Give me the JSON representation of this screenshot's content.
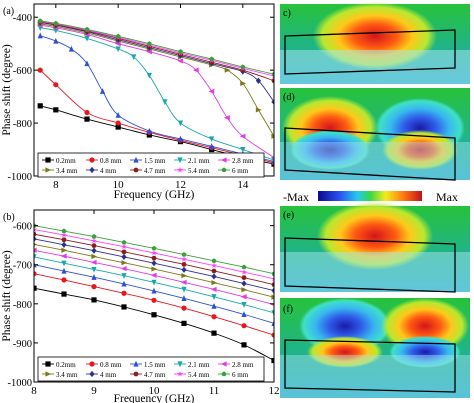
{
  "figure": {
    "colorbar": {
      "min_label": "-Max",
      "max_label": "Max"
    }
  },
  "panel_labels": [
    "(a)",
    "(b)",
    "c)",
    "(d)",
    "(e)",
    "(f)"
  ],
  "chart_data": [
    {
      "type": "line",
      "panel": "(a)",
      "xlabel": "Frequency (GHz)",
      "ylabel": "Phase shift (degree)",
      "xlim": [
        7.3,
        15
      ],
      "ylim": [
        -1000,
        -350
      ],
      "xticks": [
        8,
        10,
        12,
        14
      ],
      "yticks": [
        -400,
        -600,
        -800,
        -1000
      ],
      "legend_position": "bottom",
      "series": [
        {
          "name": "0.2mm",
          "color": "#000000",
          "marker": "square",
          "x": [
            7.5,
            8,
            9,
            10,
            11,
            12,
            13,
            14,
            15
          ],
          "y": [
            -735,
            -750,
            -785,
            -815,
            -845,
            -870,
            -900,
            -930,
            -955
          ]
        },
        {
          "name": "0.8 mm",
          "color": "#e8161e",
          "marker": "circle",
          "x": [
            7.5,
            8,
            9,
            10,
            11,
            12,
            13,
            14,
            15
          ],
          "y": [
            -600,
            -655,
            -760,
            -800,
            -835,
            -865,
            -893,
            -922,
            -950
          ]
        },
        {
          "name": "1.5 mm",
          "color": "#2f4fd6",
          "marker": "triangle-up",
          "x": [
            7.5,
            8,
            8.5,
            9,
            9.5,
            10,
            11,
            12,
            13,
            14,
            15
          ],
          "y": [
            -470,
            -490,
            -520,
            -575,
            -680,
            -770,
            -830,
            -860,
            -888,
            -917,
            -945
          ]
        },
        {
          "name": "2.1 mm",
          "color": "#1aa7a7",
          "marker": "triangle-down",
          "x": [
            7.5,
            8,
            9,
            10,
            10.5,
            11,
            11.5,
            12,
            13,
            14,
            15
          ],
          "y": [
            -440,
            -450,
            -480,
            -520,
            -550,
            -620,
            -720,
            -800,
            -860,
            -900,
            -940
          ]
        },
        {
          "name": "2.8 mm",
          "color": "#e03ce0",
          "marker": "triangle-left",
          "x": [
            7.5,
            8,
            9,
            10,
            11,
            12,
            12.5,
            13,
            13.5,
            14,
            15
          ],
          "y": [
            -430,
            -440,
            -465,
            -500,
            -530,
            -565,
            -600,
            -680,
            -780,
            -850,
            -930
          ]
        },
        {
          "name": "3.4 mm",
          "color": "#7a7a1a",
          "marker": "triangle-right",
          "x": [
            7.5,
            8,
            9,
            10,
            11,
            12,
            13,
            13.5,
            14,
            14.5,
            15
          ],
          "y": [
            -425,
            -435,
            -460,
            -490,
            -520,
            -550,
            -580,
            -600,
            -650,
            -750,
            -850
          ]
        },
        {
          "name": "4 mm",
          "color": "#2e2e8e",
          "marker": "diamond",
          "x": [
            7.5,
            8,
            9,
            10,
            11,
            12,
            13,
            14,
            14.5,
            15
          ],
          "y": [
            -420,
            -430,
            -455,
            -485,
            -515,
            -545,
            -575,
            -605,
            -640,
            -720
          ]
        },
        {
          "name": "4.7 mm",
          "color": "#8b1a1a",
          "marker": "hexagon",
          "x": [
            7.5,
            8,
            9,
            10,
            11,
            12,
            13,
            14,
            15
          ],
          "y": [
            -418,
            -428,
            -452,
            -480,
            -510,
            -540,
            -570,
            -600,
            -640
          ]
        },
        {
          "name": "5.4 mm",
          "color": "#ff40ff",
          "marker": "star",
          "x": [
            7.5,
            8,
            9,
            10,
            11,
            12,
            13,
            14,
            15
          ],
          "y": [
            -416,
            -425,
            -449,
            -476,
            -505,
            -535,
            -563,
            -593,
            -622
          ]
        },
        {
          "name": "6 mm",
          "color": "#3aa03a",
          "marker": "pentagon",
          "x": [
            7.5,
            8,
            9,
            10,
            11,
            12,
            13,
            14,
            15
          ],
          "y": [
            -414,
            -423,
            -446,
            -472,
            -500,
            -530,
            -558,
            -588,
            -615
          ]
        }
      ]
    },
    {
      "type": "line",
      "panel": "(b)",
      "xlabel": "Frequency (GHz)",
      "ylabel": "Phase shift (degree)",
      "xlim": [
        8,
        12
      ],
      "ylim": [
        -1000,
        -560
      ],
      "xticks": [
        8,
        9,
        10,
        11,
        12
      ],
      "yticks": [
        -600,
        -700,
        -800,
        -900,
        -1000
      ],
      "legend_position": "bottom",
      "series": [
        {
          "name": "0.2mm",
          "color": "#000000",
          "marker": "square",
          "x": [
            8,
            8.5,
            9,
            9.5,
            10,
            10.5,
            11,
            11.5,
            12
          ],
          "y": [
            -760,
            -775,
            -790,
            -808,
            -828,
            -850,
            -875,
            -905,
            -945
          ]
        },
        {
          "name": "0.8 mm",
          "color": "#e8161e",
          "marker": "circle",
          "x": [
            8,
            8.5,
            9,
            9.5,
            10,
            10.5,
            11,
            11.5,
            12
          ],
          "y": [
            -723,
            -739,
            -756,
            -773,
            -791,
            -811,
            -833,
            -856,
            -880
          ]
        },
        {
          "name": "1.5 mm",
          "color": "#2f4fd6",
          "marker": "triangle-up",
          "x": [
            8,
            8.5,
            9,
            9.5,
            10,
            10.5,
            11,
            11.5,
            12
          ],
          "y": [
            -700,
            -716,
            -732,
            -749,
            -767,
            -786,
            -806,
            -827,
            -850
          ]
        },
        {
          "name": "2.1 mm",
          "color": "#1aa7a7",
          "marker": "triangle-down",
          "x": [
            8,
            8.5,
            9,
            9.5,
            10,
            10.5,
            11,
            11.5,
            12
          ],
          "y": [
            -680,
            -696,
            -712,
            -728,
            -745,
            -763,
            -782,
            -802,
            -823
          ]
        },
        {
          "name": "2.8 mm",
          "color": "#e03ce0",
          "marker": "triangle-left",
          "x": [
            8,
            8.5,
            9,
            9.5,
            10,
            10.5,
            11,
            11.5,
            12
          ],
          "y": [
            -663,
            -678,
            -694,
            -710,
            -727,
            -745,
            -763,
            -782,
            -802
          ]
        },
        {
          "name": "3.4 mm",
          "color": "#7a7a1a",
          "marker": "triangle-right",
          "x": [
            8,
            8.5,
            9,
            9.5,
            10,
            10.5,
            11,
            11.5,
            12
          ],
          "y": [
            -648,
            -663,
            -679,
            -695,
            -711,
            -728,
            -746,
            -764,
            -783
          ]
        },
        {
          "name": "4 mm",
          "color": "#2e2e8e",
          "marker": "diamond",
          "x": [
            8,
            8.5,
            9,
            9.5,
            10,
            10.5,
            11,
            11.5,
            12
          ],
          "y": [
            -634,
            -649,
            -664,
            -680,
            -696,
            -713,
            -730,
            -748,
            -766
          ]
        },
        {
          "name": "4.7 mm",
          "color": "#8b1a1a",
          "marker": "hexagon",
          "x": [
            8,
            8.5,
            9,
            9.5,
            10,
            10.5,
            11,
            11.5,
            12
          ],
          "y": [
            -622,
            -636,
            -651,
            -667,
            -683,
            -699,
            -716,
            -733,
            -751
          ]
        },
        {
          "name": "5.4 mm",
          "color": "#ff40ff",
          "marker": "star",
          "x": [
            8,
            8.5,
            9,
            9.5,
            10,
            10.5,
            11,
            11.5,
            12
          ],
          "y": [
            -610,
            -624,
            -639,
            -654,
            -670,
            -686,
            -702,
            -719,
            -736
          ]
        },
        {
          "name": "6 mm",
          "color": "#3aa03a",
          "marker": "pentagon",
          "x": [
            8,
            8.5,
            9,
            9.5,
            10,
            10.5,
            11,
            11.5,
            12
          ],
          "y": [
            -600,
            -614,
            -628,
            -643,
            -658,
            -674,
            -690,
            -706,
            -723
          ]
        }
      ]
    }
  ]
}
